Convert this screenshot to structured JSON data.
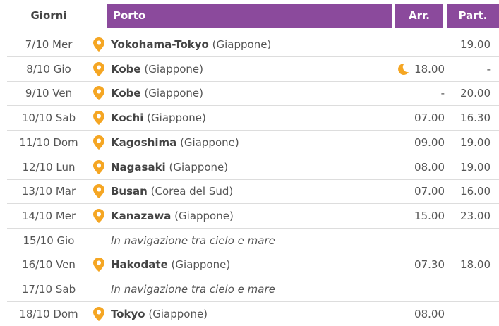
{
  "table": {
    "headers": [
      "Giorni",
      "Porto",
      "Arr.",
      "Part."
    ],
    "rows": [
      {
        "day": "7/10 Mer",
        "port": "Yokohama-Tokyo",
        "country": "(Giappone)",
        "arr": "",
        "dep": "19.00"
      },
      {
        "day": "8/10 Gio",
        "port": "Kobe",
        "country": "(Giappone)",
        "arr": "18.00",
        "dep": "-",
        "overnight": true
      },
      {
        "day": "9/10 Ven",
        "port": "Kobe",
        "country": "(Giappone)",
        "arr": "-",
        "dep": "20.00"
      },
      {
        "day": "10/10 Sab",
        "port": "Kochi",
        "country": "(Giappone)",
        "arr": "07.00",
        "dep": "16.30"
      },
      {
        "day": "11/10 Dom",
        "port": "Kagoshima",
        "country": "(Giappone)",
        "arr": "09.00",
        "dep": "19.00"
      },
      {
        "day": "12/10 Lun",
        "port": "Nagasaki",
        "country": "(Giappone)",
        "arr": "08.00",
        "dep": "19.00"
      },
      {
        "day": "13/10 Mar",
        "port": "Busan",
        "country": "(Corea del Sud)",
        "arr": "07.00",
        "dep": "16.00"
      },
      {
        "day": "14/10 Mer",
        "port": "Kanazawa",
        "country": "(Giappone)",
        "arr": "15.00",
        "dep": "23.00"
      },
      {
        "day": "15/10 Gio",
        "note": "In navigazione tra cielo e mare"
      },
      {
        "day": "16/10 Ven",
        "port": "Hakodate",
        "country": "(Giappone)",
        "arr": "07.30",
        "dep": "18.00"
      },
      {
        "day": "17/10 Sab",
        "note": "In navigazione tra cielo e mare"
      },
      {
        "day": "18/10 Dom",
        "port": "Tokyo",
        "country": "(Giappone)",
        "arr": "08.00",
        "dep": ""
      }
    ]
  }
}
